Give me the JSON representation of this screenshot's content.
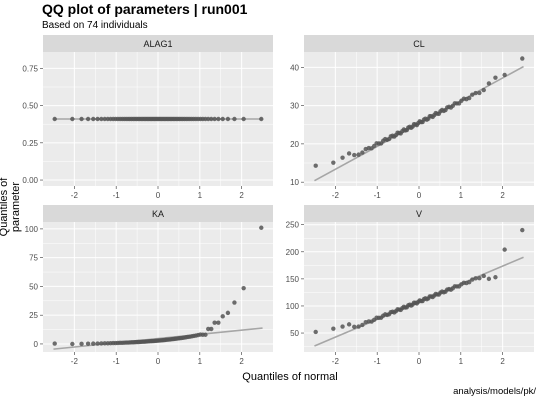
{
  "title": "QQ plot of parameters | run001",
  "subtitle": "Based on 74 individuals",
  "xlabel": "Quantiles of normal",
  "ylabel": "Quantiles of parameter",
  "caption": "analysis/models/pk/",
  "colors": {
    "panel_bg": "#ebebeb",
    "strip_bg": "#d9d9d9",
    "grid": "#ffffff",
    "point": "#555555",
    "line": "#a6a6a6",
    "text": "#4d4d4d"
  },
  "chart_data": [
    {
      "type": "scatter",
      "panel": "ALAG1",
      "xlim": [
        -2.75,
        2.75
      ],
      "ylim": [
        -0.04,
        0.86
      ],
      "xticks": [
        -2,
        -1,
        0,
        1,
        2
      ],
      "yticks": [
        0.0,
        0.25,
        0.5,
        0.75
      ],
      "ytick_labels": [
        "0.00",
        "0.25",
        "0.50",
        "0.75"
      ],
      "sample": {
        "generator": "qq",
        "n": 74,
        "kind": "constant",
        "value": 0.41
      },
      "reference_line": {
        "x": [
          -2.5,
          2.5
        ],
        "y": [
          0.41,
          0.41
        ]
      }
    },
    {
      "type": "scatter",
      "panel": "CL",
      "xlim": [
        -2.75,
        2.75
      ],
      "ylim": [
        9,
        44
      ],
      "xticks": [
        -2,
        -1,
        0,
        1,
        2
      ],
      "yticks": [
        10,
        20,
        30,
        40
      ],
      "ytick_labels": [
        "10",
        "20",
        "30",
        "40"
      ],
      "sample": {
        "generator": "qq",
        "n": 74,
        "kind": "linear",
        "mean": 25.5,
        "sd": 5.6,
        "tail_points": [
          [
            -2.48,
            14.3
          ],
          [
            -2.08,
            15.1
          ],
          [
            -1.84,
            16.4
          ],
          [
            -1.66,
            17.5
          ],
          [
            1.66,
            35.8
          ],
          [
            1.84,
            37.3
          ],
          [
            2.08,
            38.0
          ],
          [
            2.48,
            42.3
          ]
        ]
      },
      "reference_line": {
        "x": [
          -2.5,
          2.5
        ],
        "y": [
          10.4,
          40.2
        ]
      }
    },
    {
      "type": "scatter",
      "panel": "KA",
      "xlim": [
        -2.75,
        2.75
      ],
      "ylim": [
        -7,
        106
      ],
      "xticks": [
        -2,
        -1,
        0,
        1,
        2
      ],
      "yticks": [
        0,
        25,
        50,
        75,
        100
      ],
      "ytick_labels": [
        "0",
        "25",
        "50",
        "75",
        "100"
      ],
      "sample": {
        "generator": "qq",
        "n": 74,
        "kind": "skewed",
        "tail_points": [
          [
            -2.48,
            0.3
          ],
          [
            1.09,
            8.0
          ],
          [
            1.23,
            13.0
          ],
          [
            1.39,
            18.5
          ],
          [
            1.57,
            24.0
          ],
          [
            1.66,
            27.0
          ],
          [
            1.84,
            36.0
          ],
          [
            2.08,
            48.5
          ],
          [
            2.48,
            101.0
          ]
        ]
      },
      "reference_line": {
        "x": [
          -2.5,
          2.5
        ],
        "y": [
          -4.5,
          13.8
        ]
      }
    },
    {
      "type": "scatter",
      "panel": "V",
      "xlim": [
        -2.75,
        2.75
      ],
      "ylim": [
        15,
        255
      ],
      "xticks": [
        -2,
        -1,
        0,
        1,
        2
      ],
      "yticks": [
        50,
        100,
        150,
        200,
        250
      ],
      "ytick_labels": [
        "50",
        "100",
        "150",
        "200",
        "250"
      ],
      "sample": {
        "generator": "qq",
        "n": 74,
        "kind": "linear",
        "mean": 108,
        "sd": 31,
        "tail_points": [
          [
            -2.48,
            52.0
          ],
          [
            -2.08,
            58.0
          ],
          [
            -1.84,
            62.0
          ],
          [
            -1.66,
            66.0
          ],
          [
            1.66,
            150.0
          ],
          [
            1.84,
            153.0
          ],
          [
            2.08,
            204.0
          ],
          [
            2.48,
            240.0
          ]
        ]
      },
      "reference_line": {
        "x": [
          -2.5,
          2.5
        ],
        "y": [
          26.0,
          190.0
        ]
      }
    }
  ]
}
